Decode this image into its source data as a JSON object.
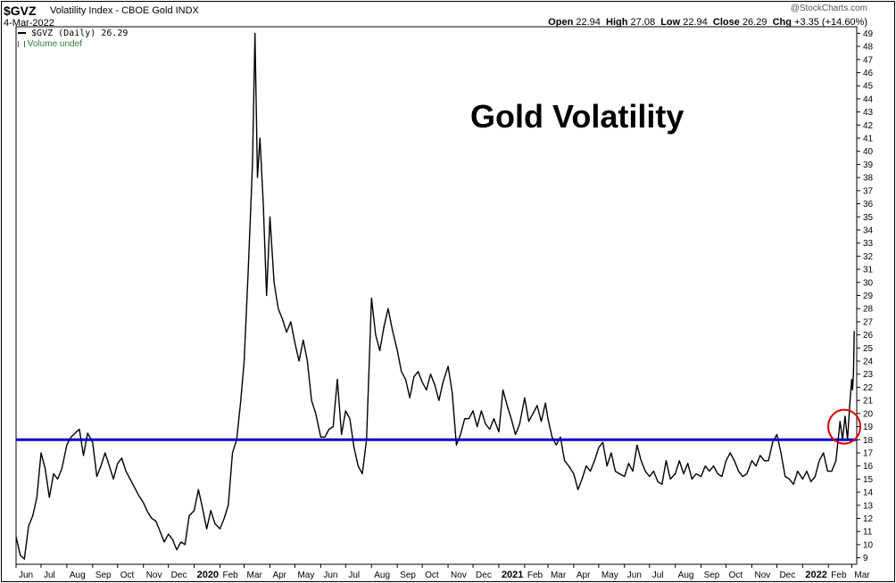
{
  "header": {
    "symbol": "$GVZ",
    "subtitle": "Volatility Index - CBOE Gold  INDX",
    "date": "4-Mar-2022",
    "watermark": "@StockCharts.com",
    "open_label": "Open",
    "open_value": "22.94",
    "high_label": "High",
    "high_value": "27.08",
    "low_label": "Low",
    "low_value": "22.94",
    "close_label": "Close",
    "close_value": "26.29",
    "chg_label": "Chg",
    "chg_value": "+3.35 (+14.60%)"
  },
  "legend": {
    "series": "$GVZ (Daily) 26.29",
    "volume": "Volume undef"
  },
  "annotation": "Gold Volatility",
  "colors": {
    "line": "#000000",
    "support_line": "#0000cc",
    "circle": "#dd0000",
    "grid": "#dddddd"
  },
  "chart_data": {
    "type": "line",
    "title": "Gold Volatility",
    "series": [
      {
        "name": "$GVZ (Daily)",
        "points": [
          [
            "2019-06-01",
            10.6
          ],
          [
            "2019-06-06",
            9.2
          ],
          [
            "2019-06-11",
            8.9
          ],
          [
            "2019-06-16",
            11.4
          ],
          [
            "2019-06-21",
            12.2
          ],
          [
            "2019-06-26",
            13.6
          ],
          [
            "2019-07-01",
            17.0
          ],
          [
            "2019-07-06",
            15.8
          ],
          [
            "2019-07-11",
            13.6
          ],
          [
            "2019-07-16",
            15.4
          ],
          [
            "2019-07-21",
            15.0
          ],
          [
            "2019-07-26",
            15.8
          ],
          [
            "2019-08-01",
            17.6
          ],
          [
            "2019-08-06",
            18.2
          ],
          [
            "2019-08-11",
            18.5
          ],
          [
            "2019-08-16",
            18.8
          ],
          [
            "2019-08-21",
            16.8
          ],
          [
            "2019-08-26",
            18.5
          ],
          [
            "2019-09-01",
            17.8
          ],
          [
            "2019-09-06",
            15.2
          ],
          [
            "2019-09-11",
            16.0
          ],
          [
            "2019-09-16",
            17.0
          ],
          [
            "2019-09-21",
            16.0
          ],
          [
            "2019-09-26",
            15.0
          ],
          [
            "2019-10-01",
            16.2
          ],
          [
            "2019-10-06",
            16.6
          ],
          [
            "2019-10-11",
            15.6
          ],
          [
            "2019-10-16",
            15.0
          ],
          [
            "2019-10-21",
            14.4
          ],
          [
            "2019-10-26",
            13.8
          ],
          [
            "2019-11-01",
            13.2
          ],
          [
            "2019-11-06",
            12.5
          ],
          [
            "2019-11-11",
            12.0
          ],
          [
            "2019-11-16",
            11.8
          ],
          [
            "2019-11-21",
            11.0
          ],
          [
            "2019-11-26",
            10.2
          ],
          [
            "2019-12-01",
            10.8
          ],
          [
            "2019-12-06",
            10.4
          ],
          [
            "2019-12-11",
            9.6
          ],
          [
            "2019-12-16",
            10.2
          ],
          [
            "2019-12-21",
            10.0
          ],
          [
            "2019-12-26",
            12.2
          ],
          [
            "2020-01-01",
            12.6
          ],
          [
            "2020-01-06",
            14.2
          ],
          [
            "2020-01-11",
            12.8
          ],
          [
            "2020-01-16",
            11.2
          ],
          [
            "2020-01-21",
            12.6
          ],
          [
            "2020-01-26",
            11.6
          ],
          [
            "2020-02-01",
            11.2
          ],
          [
            "2020-02-06",
            12.0
          ],
          [
            "2020-02-11",
            13.0
          ],
          [
            "2020-02-16",
            17.0
          ],
          [
            "2020-02-21",
            18.0
          ],
          [
            "2020-02-26",
            21.0
          ],
          [
            "2020-03-01",
            24.0
          ],
          [
            "2020-03-06",
            31.0
          ],
          [
            "2020-03-11",
            39.0
          ],
          [
            "2020-03-14",
            49.0
          ],
          [
            "2020-03-17",
            38.0
          ],
          [
            "2020-03-20",
            41.0
          ],
          [
            "2020-03-24",
            36.0
          ],
          [
            "2020-03-28",
            29.0
          ],
          [
            "2020-04-01",
            35.0
          ],
          [
            "2020-04-06",
            30.0
          ],
          [
            "2020-04-11",
            28.0
          ],
          [
            "2020-04-16",
            27.2
          ],
          [
            "2020-04-21",
            26.2
          ],
          [
            "2020-04-26",
            27.0
          ],
          [
            "2020-05-01",
            25.4
          ],
          [
            "2020-05-06",
            24.0
          ],
          [
            "2020-05-11",
            25.6
          ],
          [
            "2020-05-16",
            24.0
          ],
          [
            "2020-05-21",
            21.0
          ],
          [
            "2020-05-26",
            20.0
          ],
          [
            "2020-06-01",
            18.2
          ],
          [
            "2020-06-06",
            18.2
          ],
          [
            "2020-06-11",
            18.8
          ],
          [
            "2020-06-16",
            19.0
          ],
          [
            "2020-06-21",
            22.6
          ],
          [
            "2020-06-26",
            18.4
          ],
          [
            "2020-07-01",
            20.2
          ],
          [
            "2020-07-06",
            19.6
          ],
          [
            "2020-07-11",
            17.4
          ],
          [
            "2020-07-16",
            16.0
          ],
          [
            "2020-07-21",
            15.4
          ],
          [
            "2020-07-26",
            18.0
          ],
          [
            "2020-08-01",
            28.8
          ],
          [
            "2020-08-06",
            26.0
          ],
          [
            "2020-08-11",
            24.8
          ],
          [
            "2020-08-16",
            26.6
          ],
          [
            "2020-08-21",
            28.0
          ],
          [
            "2020-08-26",
            26.4
          ],
          [
            "2020-09-01",
            24.8
          ],
          [
            "2020-09-06",
            23.2
          ],
          [
            "2020-09-11",
            22.6
          ],
          [
            "2020-09-16",
            21.2
          ],
          [
            "2020-09-21",
            22.8
          ],
          [
            "2020-09-26",
            23.2
          ],
          [
            "2020-10-01",
            22.4
          ],
          [
            "2020-10-06",
            21.8
          ],
          [
            "2020-10-11",
            23.0
          ],
          [
            "2020-10-16",
            22.2
          ],
          [
            "2020-10-21",
            21.0
          ],
          [
            "2020-10-26",
            22.4
          ],
          [
            "2020-11-01",
            23.6
          ],
          [
            "2020-11-06",
            21.6
          ],
          [
            "2020-11-11",
            17.6
          ],
          [
            "2020-11-16",
            18.4
          ],
          [
            "2020-11-21",
            19.6
          ],
          [
            "2020-11-26",
            19.6
          ],
          [
            "2020-12-01",
            20.2
          ],
          [
            "2020-12-06",
            19.0
          ],
          [
            "2020-12-11",
            20.2
          ],
          [
            "2020-12-16",
            19.2
          ],
          [
            "2020-12-21",
            18.8
          ],
          [
            "2020-12-26",
            19.6
          ],
          [
            "2021-01-01",
            18.6
          ],
          [
            "2021-01-06",
            21.8
          ],
          [
            "2021-01-11",
            20.6
          ],
          [
            "2021-01-16",
            19.6
          ],
          [
            "2021-01-21",
            18.4
          ],
          [
            "2021-01-26",
            19.2
          ],
          [
            "2021-02-01",
            21.2
          ],
          [
            "2021-02-06",
            19.4
          ],
          [
            "2021-02-11",
            20.0
          ],
          [
            "2021-02-16",
            20.6
          ],
          [
            "2021-02-21",
            19.4
          ],
          [
            "2021-02-26",
            20.8
          ],
          [
            "2021-03-01",
            19.6
          ],
          [
            "2021-03-06",
            18.2
          ],
          [
            "2021-03-11",
            17.6
          ],
          [
            "2021-03-16",
            18.2
          ],
          [
            "2021-03-21",
            16.4
          ],
          [
            "2021-03-26",
            16.0
          ],
          [
            "2021-04-01",
            15.4
          ],
          [
            "2021-04-06",
            14.2
          ],
          [
            "2021-04-11",
            15.0
          ],
          [
            "2021-04-16",
            16.0
          ],
          [
            "2021-04-21",
            15.6
          ],
          [
            "2021-04-26",
            16.4
          ],
          [
            "2021-05-01",
            17.4
          ],
          [
            "2021-05-06",
            17.8
          ],
          [
            "2021-05-11",
            16.0
          ],
          [
            "2021-05-16",
            17.0
          ],
          [
            "2021-05-21",
            15.6
          ],
          [
            "2021-05-26",
            15.4
          ],
          [
            "2021-06-01",
            15.2
          ],
          [
            "2021-06-06",
            16.2
          ],
          [
            "2021-06-11",
            15.6
          ],
          [
            "2021-06-16",
            17.6
          ],
          [
            "2021-06-21",
            16.4
          ],
          [
            "2021-06-26",
            15.6
          ],
          [
            "2021-07-01",
            15.2
          ],
          [
            "2021-07-06",
            15.6
          ],
          [
            "2021-07-11",
            14.8
          ],
          [
            "2021-07-16",
            14.6
          ],
          [
            "2021-07-21",
            16.4
          ],
          [
            "2021-07-26",
            15.0
          ],
          [
            "2021-08-01",
            15.4
          ],
          [
            "2021-08-06",
            16.4
          ],
          [
            "2021-08-11",
            15.4
          ],
          [
            "2021-08-16",
            16.2
          ],
          [
            "2021-08-21",
            15.0
          ],
          [
            "2021-08-26",
            15.4
          ],
          [
            "2021-09-01",
            15.2
          ],
          [
            "2021-09-06",
            16.0
          ],
          [
            "2021-09-11",
            15.6
          ],
          [
            "2021-09-16",
            16.0
          ],
          [
            "2021-09-21",
            15.4
          ],
          [
            "2021-09-26",
            15.2
          ],
          [
            "2021-10-01",
            16.4
          ],
          [
            "2021-10-06",
            17.0
          ],
          [
            "2021-10-11",
            16.4
          ],
          [
            "2021-10-16",
            15.6
          ],
          [
            "2021-10-21",
            15.2
          ],
          [
            "2021-10-26",
            15.4
          ],
          [
            "2021-11-01",
            16.4
          ],
          [
            "2021-11-06",
            16.0
          ],
          [
            "2021-11-11",
            16.8
          ],
          [
            "2021-11-16",
            16.4
          ],
          [
            "2021-11-21",
            16.4
          ],
          [
            "2021-11-26",
            17.8
          ],
          [
            "2021-12-01",
            18.4
          ],
          [
            "2021-12-06",
            17.0
          ],
          [
            "2021-12-11",
            15.2
          ],
          [
            "2021-12-16",
            15.0
          ],
          [
            "2021-12-21",
            14.6
          ],
          [
            "2021-12-26",
            15.6
          ],
          [
            "2022-01-01",
            15.0
          ],
          [
            "2022-01-06",
            15.6
          ],
          [
            "2022-01-11",
            14.8
          ],
          [
            "2022-01-16",
            15.2
          ],
          [
            "2022-01-21",
            16.4
          ],
          [
            "2022-01-26",
            17.0
          ],
          [
            "2022-01-31",
            15.6
          ],
          [
            "2022-02-05",
            15.6
          ],
          [
            "2022-02-10",
            16.4
          ],
          [
            "2022-02-15",
            19.4
          ],
          [
            "2022-02-18",
            18.0
          ],
          [
            "2022-02-21",
            19.8
          ],
          [
            "2022-02-24",
            18.0
          ],
          [
            "2022-02-27",
            21.0
          ],
          [
            "2022-03-01",
            22.6
          ],
          [
            "2022-03-02",
            21.8
          ],
          [
            "2022-03-03",
            22.94
          ],
          [
            "2022-03-04",
            26.29
          ]
        ]
      }
    ],
    "support_level": 18,
    "highlight": {
      "x": "2022-02-20",
      "y": 19.0
    },
    "x_axis": {
      "start": "2019-06-01",
      "end": "2022-03-07",
      "ticks": [
        [
          "2019-06-01",
          "Jun"
        ],
        [
          "2019-07-01",
          "Jul"
        ],
        [
          "2019-08-01",
          "Aug"
        ],
        [
          "2019-09-01",
          "Sep"
        ],
        [
          "2019-10-01",
          "Oct"
        ],
        [
          "2019-11-01",
          "Nov"
        ],
        [
          "2019-12-01",
          "Dec"
        ],
        [
          "2020-01-01",
          "2020"
        ],
        [
          "2020-02-01",
          "Feb"
        ],
        [
          "2020-03-01",
          "Mar"
        ],
        [
          "2020-04-01",
          "Apr"
        ],
        [
          "2020-05-01",
          "May"
        ],
        [
          "2020-06-01",
          "Jun"
        ],
        [
          "2020-07-01",
          "Jul"
        ],
        [
          "2020-08-01",
          "Aug"
        ],
        [
          "2020-09-01",
          "Sep"
        ],
        [
          "2020-10-01",
          "Oct"
        ],
        [
          "2020-11-01",
          "Nov"
        ],
        [
          "2020-12-01",
          "Dec"
        ],
        [
          "2021-01-01",
          "2021"
        ],
        [
          "2021-02-01",
          "Feb"
        ],
        [
          "2021-03-01",
          "Mar"
        ],
        [
          "2021-04-01",
          "Apr"
        ],
        [
          "2021-05-01",
          "May"
        ],
        [
          "2021-06-01",
          "Jun"
        ],
        [
          "2021-07-01",
          "Jul"
        ],
        [
          "2021-08-01",
          "Aug"
        ],
        [
          "2021-09-01",
          "Sep"
        ],
        [
          "2021-10-01",
          "Oct"
        ],
        [
          "2021-11-01",
          "Nov"
        ],
        [
          "2021-12-01",
          "Dec"
        ],
        [
          "2022-01-01",
          "2022"
        ],
        [
          "2022-02-01",
          "Feb"
        ],
        [
          "2022-03-01",
          "Mar"
        ]
      ]
    },
    "y_axis": {
      "min": 8.5,
      "max": 49.5,
      "ticks": [
        9,
        10,
        11,
        12,
        13,
        14,
        15,
        16,
        17,
        18,
        19,
        20,
        21,
        22,
        23,
        24,
        25,
        26,
        27,
        28,
        29,
        30,
        31,
        32,
        33,
        34,
        35,
        36,
        37,
        38,
        39,
        40,
        41,
        42,
        43,
        44,
        45,
        46,
        47,
        48,
        49
      ]
    },
    "grid": false
  }
}
